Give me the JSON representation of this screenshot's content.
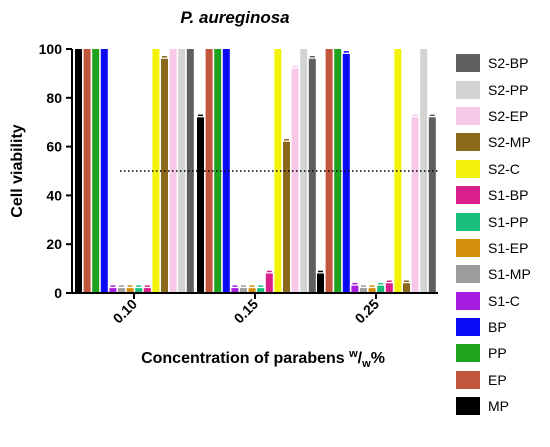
{
  "chart_data": {
    "type": "bar",
    "title": "P. aureginosa",
    "xlabel": "Concentration of parabens",
    "xlabel_unit": {
      "sup": "w",
      "slash": "/",
      "sub": "w",
      "suffix": "%"
    },
    "ylabel": "Cell viability",
    "ylim": [
      0,
      100
    ],
    "yticks": [
      0,
      20,
      40,
      60,
      80,
      100
    ],
    "categories": [
      "0.10",
      "0.15",
      "0.25"
    ],
    "threshold": 50,
    "legend_position": "right",
    "series": [
      {
        "name": "MP",
        "color": "#000000",
        "values": [
          100,
          72,
          8
        ]
      },
      {
        "name": "EP",
        "color": "#c0563c",
        "values": [
          100,
          100,
          100
        ]
      },
      {
        "name": "PP",
        "color": "#1fa31f",
        "values": [
          100,
          100,
          100
        ]
      },
      {
        "name": "BP",
        "color": "#0a0af5",
        "values": [
          100,
          100,
          98
        ]
      },
      {
        "name": "S1-C",
        "color": "#a81ee0",
        "values": [
          2,
          2,
          3
        ]
      },
      {
        "name": "S1-MP",
        "color": "#9d9d9d",
        "values": [
          2,
          2,
          2
        ]
      },
      {
        "name": "S1-EP",
        "color": "#d4900d",
        "values": [
          2,
          2,
          2
        ]
      },
      {
        "name": "S1-PP",
        "color": "#17bf7a",
        "values": [
          2,
          2,
          3
        ]
      },
      {
        "name": "S1-BP",
        "color": "#d81f8a",
        "values": [
          2,
          8,
          4
        ]
      },
      {
        "name": "S2-C",
        "color": "#f2f20a",
        "values": [
          100,
          100,
          100
        ]
      },
      {
        "name": "S2-MP",
        "color": "#8a6a1a",
        "values": [
          96,
          62,
          4
        ]
      },
      {
        "name": "S2-EP",
        "color": "#f7c8e8",
        "values": [
          100,
          92,
          72
        ]
      },
      {
        "name": "S2-PP",
        "color": "#d3d3d3",
        "values": [
          100,
          100,
          100
        ]
      },
      {
        "name": "S2-BP",
        "color": "#5f5f5f",
        "values": [
          100,
          96,
          72
        ]
      }
    ]
  }
}
